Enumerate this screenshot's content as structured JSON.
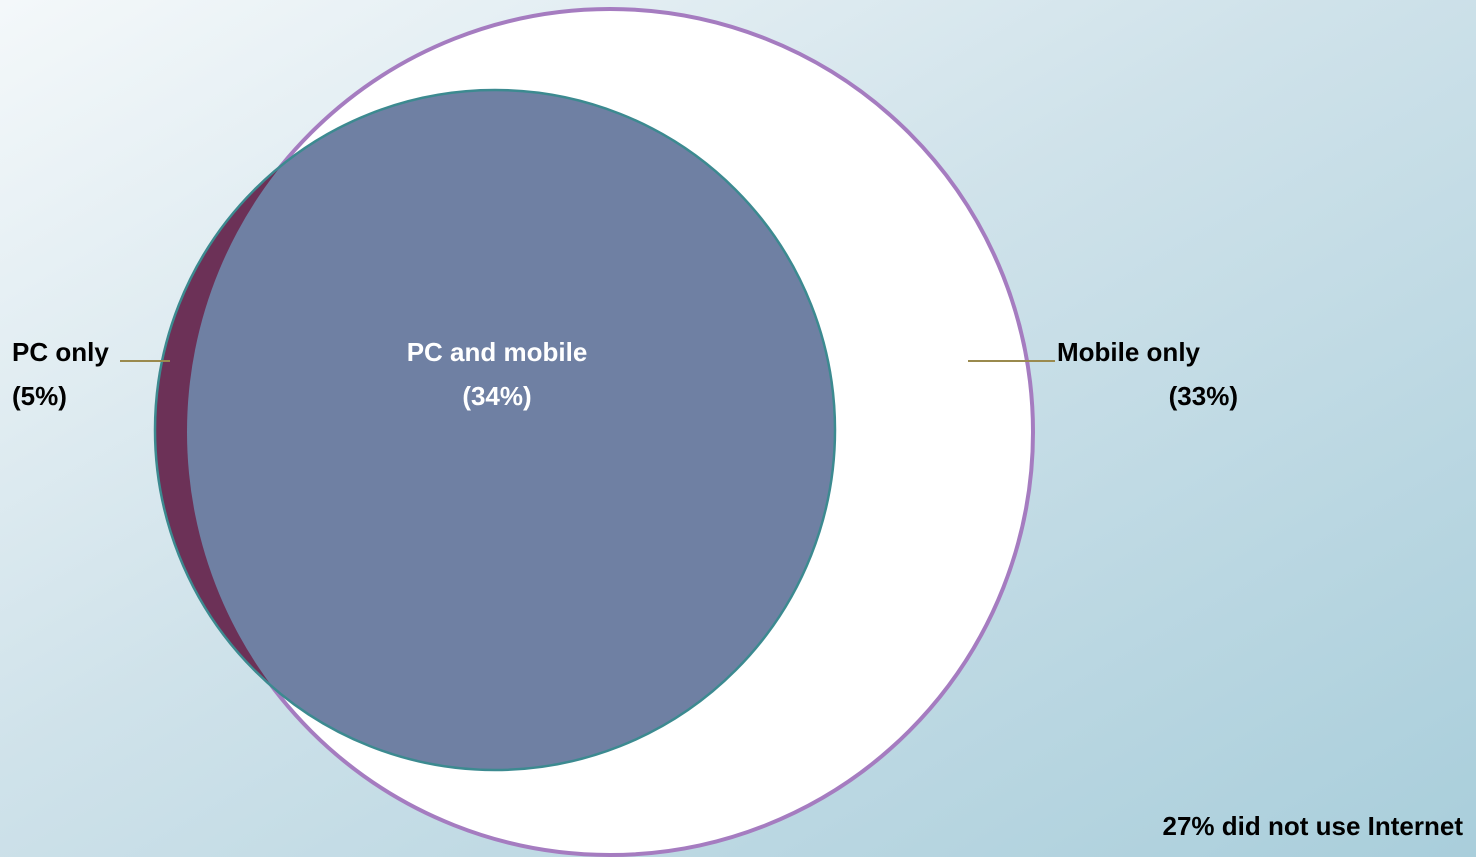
{
  "diagram": {
    "sets": [
      {
        "label": "PC only",
        "share": "(5%)"
      },
      {
        "label": "PC and mobile",
        "share": "(34%)"
      },
      {
        "label": "Mobile only",
        "share": "(33%)"
      }
    ],
    "note": "27% did not use Internet"
  }
}
